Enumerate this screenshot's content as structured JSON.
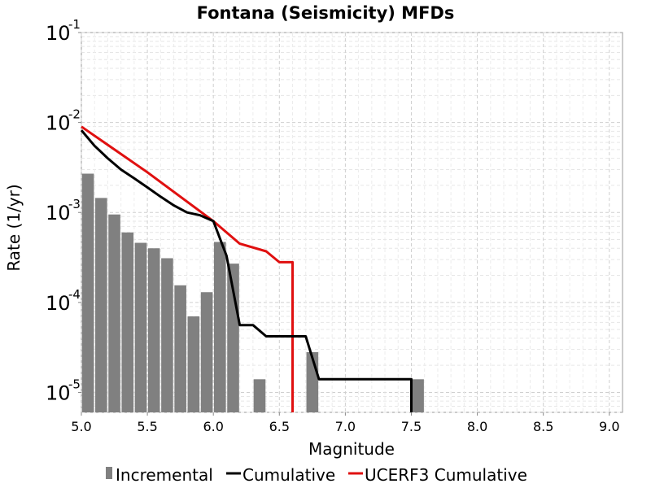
{
  "chart_data": {
    "type": "bar",
    "title": "Fontana (Seismicity) MFDs",
    "xlabel": "Magnitude",
    "ylabel": "Rate (1/yr)",
    "xlim": [
      5.0,
      9.1
    ],
    "ylim": [
      6e-06,
      0.1
    ],
    "yscale": "log",
    "grid": true,
    "legend_position": "bottom",
    "x_ticks": [
      "5.0",
      "5.5",
      "6.0",
      "6.5",
      "7.0",
      "7.5",
      "8.0",
      "8.5",
      "9.0"
    ],
    "y_ticks": [
      {
        "base": "10",
        "exp": "-5"
      },
      {
        "base": "10",
        "exp": "-4"
      },
      {
        "base": "10",
        "exp": "-3"
      },
      {
        "base": "10",
        "exp": "-2"
      },
      {
        "base": "10",
        "exp": "-1"
      }
    ],
    "series": [
      {
        "name": "Incremental",
        "type": "bar",
        "color": "#808080",
        "bar_width": 0.09,
        "x": [
          5.05,
          5.15,
          5.25,
          5.35,
          5.45,
          5.55,
          5.65,
          5.75,
          5.85,
          5.95,
          6.05,
          6.15,
          6.35,
          6.75,
          7.55
        ],
        "y": [
          0.0027,
          0.00145,
          0.00095,
          0.0006,
          0.00046,
          0.0004,
          0.00031,
          0.000155,
          7e-05,
          0.00013,
          0.00047,
          0.00027,
          1.4e-05,
          2.8e-05,
          1.4e-05
        ]
      },
      {
        "name": "Cumulative",
        "type": "line",
        "color": "#000000",
        "x": [
          5.0,
          5.1,
          5.2,
          5.3,
          5.4,
          5.5,
          5.6,
          5.7,
          5.8,
          5.9,
          6.0,
          6.1,
          6.2,
          6.3,
          6.4,
          6.5,
          6.6,
          6.7,
          6.8,
          6.9,
          7.0,
          7.1,
          7.2,
          7.3,
          7.4,
          7.5,
          7.5
        ],
        "y": [
          0.0082,
          0.0055,
          0.004,
          0.003,
          0.0024,
          0.0019,
          0.0015,
          0.0012,
          0.001,
          0.00093,
          0.0008,
          0.00033,
          5.6e-05,
          5.6e-05,
          4.2e-05,
          4.2e-05,
          4.2e-05,
          4.2e-05,
          1.4e-05,
          1.4e-05,
          1.4e-05,
          1.4e-05,
          1.4e-05,
          1.4e-05,
          1.4e-05,
          1.4e-05,
          6e-06
        ]
      },
      {
        "name": "UCERF3 Cumulative",
        "type": "line",
        "color": "#e01010",
        "x": [
          5.0,
          5.5,
          6.0,
          6.2,
          6.4,
          6.5,
          6.6,
          6.6
        ],
        "y": [
          0.009,
          0.0028,
          0.0008,
          0.00045,
          0.00037,
          0.00028,
          0.00028,
          6e-06
        ]
      }
    ]
  }
}
